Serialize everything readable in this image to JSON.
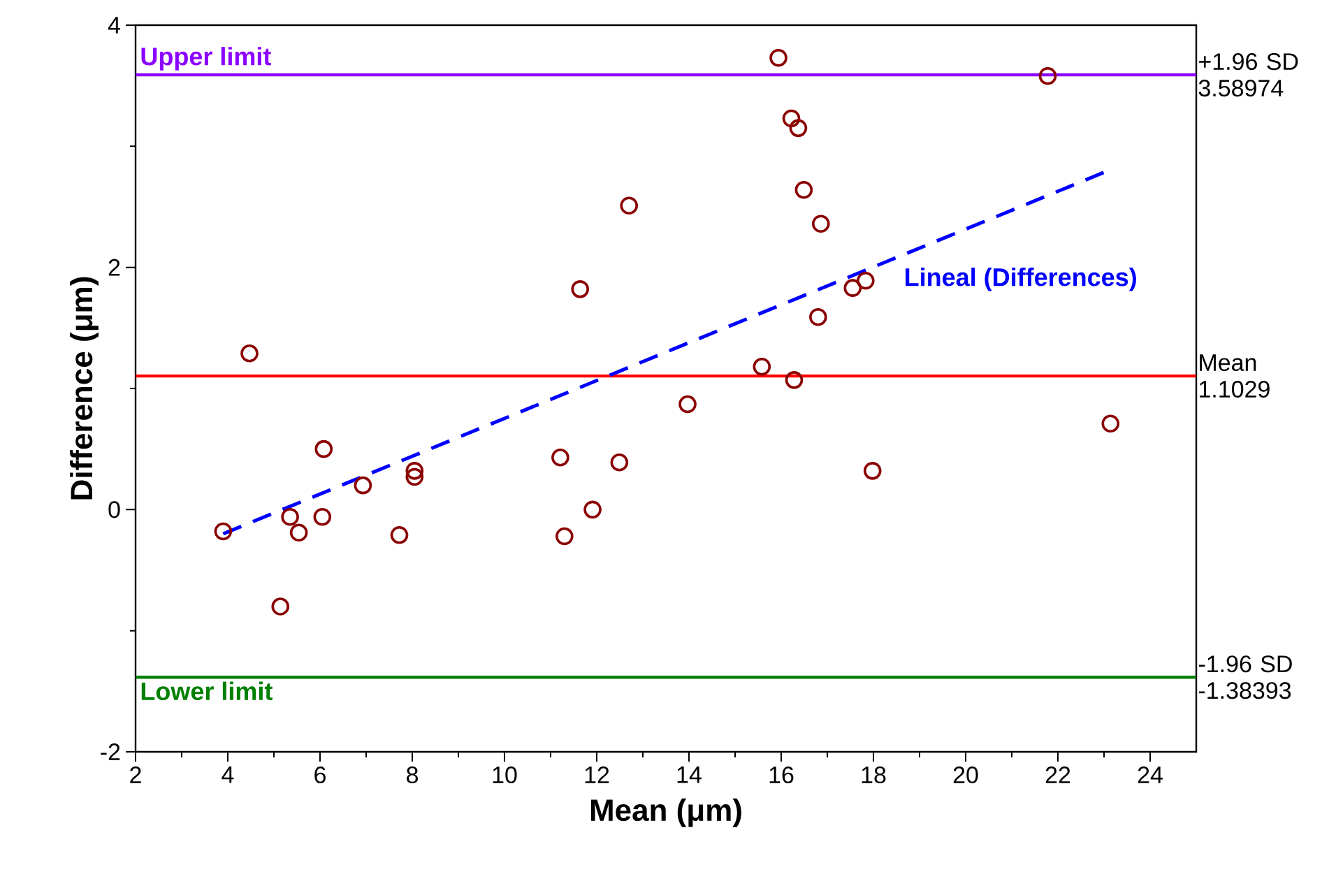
{
  "chart_data": {
    "type": "scatter",
    "xlabel": "Mean (μm)",
    "ylabel": "Difference (μm)",
    "xlim": [
      2,
      25
    ],
    "xticks": [
      2,
      4,
      6,
      8,
      10,
      12,
      14,
      16,
      18,
      20,
      22,
      24
    ],
    "ylim": [
      -2,
      4
    ],
    "yticks": [
      -2,
      0,
      2,
      4
    ],
    "series": [
      {
        "color": "#8b0000",
        "marker": "circle",
        "x": [
          3.9,
          4.47,
          5.35,
          5.54,
          5.14,
          6.08,
          6.05,
          6.93,
          7.72,
          8.05,
          8.05,
          11.21,
          11.3,
          11.64,
          11.91,
          12.49,
          12.7,
          13.97,
          15.58,
          15.94,
          16.22,
          16.37,
          16.28,
          16.49,
          16.86,
          16.8,
          17.55,
          17.83,
          17.98,
          21.78,
          23.14
        ],
        "values": [
          -0.18,
          1.29,
          -0.06,
          -0.19,
          -0.8,
          0.5,
          -0.06,
          0.2,
          -0.21,
          0.32,
          0.27,
          0.43,
          -0.22,
          1.82,
          0.0,
          0.39,
          2.51,
          0.87,
          1.18,
          3.73,
          3.23,
          3.15,
          1.07,
          2.64,
          2.36,
          1.59,
          1.83,
          1.89,
          0.32,
          3.58,
          0.71
        ]
      },
      {
        "type": "line",
        "name": "Lineal (Differences)",
        "color": "#0000ff",
        "line_style": "dashed",
        "marker": "none",
        "x": [
          3.9,
          23.1
        ],
        "values": [
          -0.2,
          2.8
        ]
      }
    ],
    "ref_lines": [
      {
        "axis": "y",
        "value": 3.58974,
        "label": "+1.96 SD 3.58974",
        "color": "#8b00ff"
      },
      {
        "axis": "y",
        "value": 1.1029,
        "label": "Mean 1.1029",
        "color": "#ff0000"
      },
      {
        "axis": "y",
        "value": -1.38393,
        "label": "-1.96 SD -1.38393",
        "color": "#008000"
      }
    ],
    "annotations": [
      {
        "text": "Upper limit",
        "x": 2,
        "y": 3.58974
      },
      {
        "text": "Lower limit",
        "x": 2,
        "y": -1.38393
      }
    ]
  }
}
